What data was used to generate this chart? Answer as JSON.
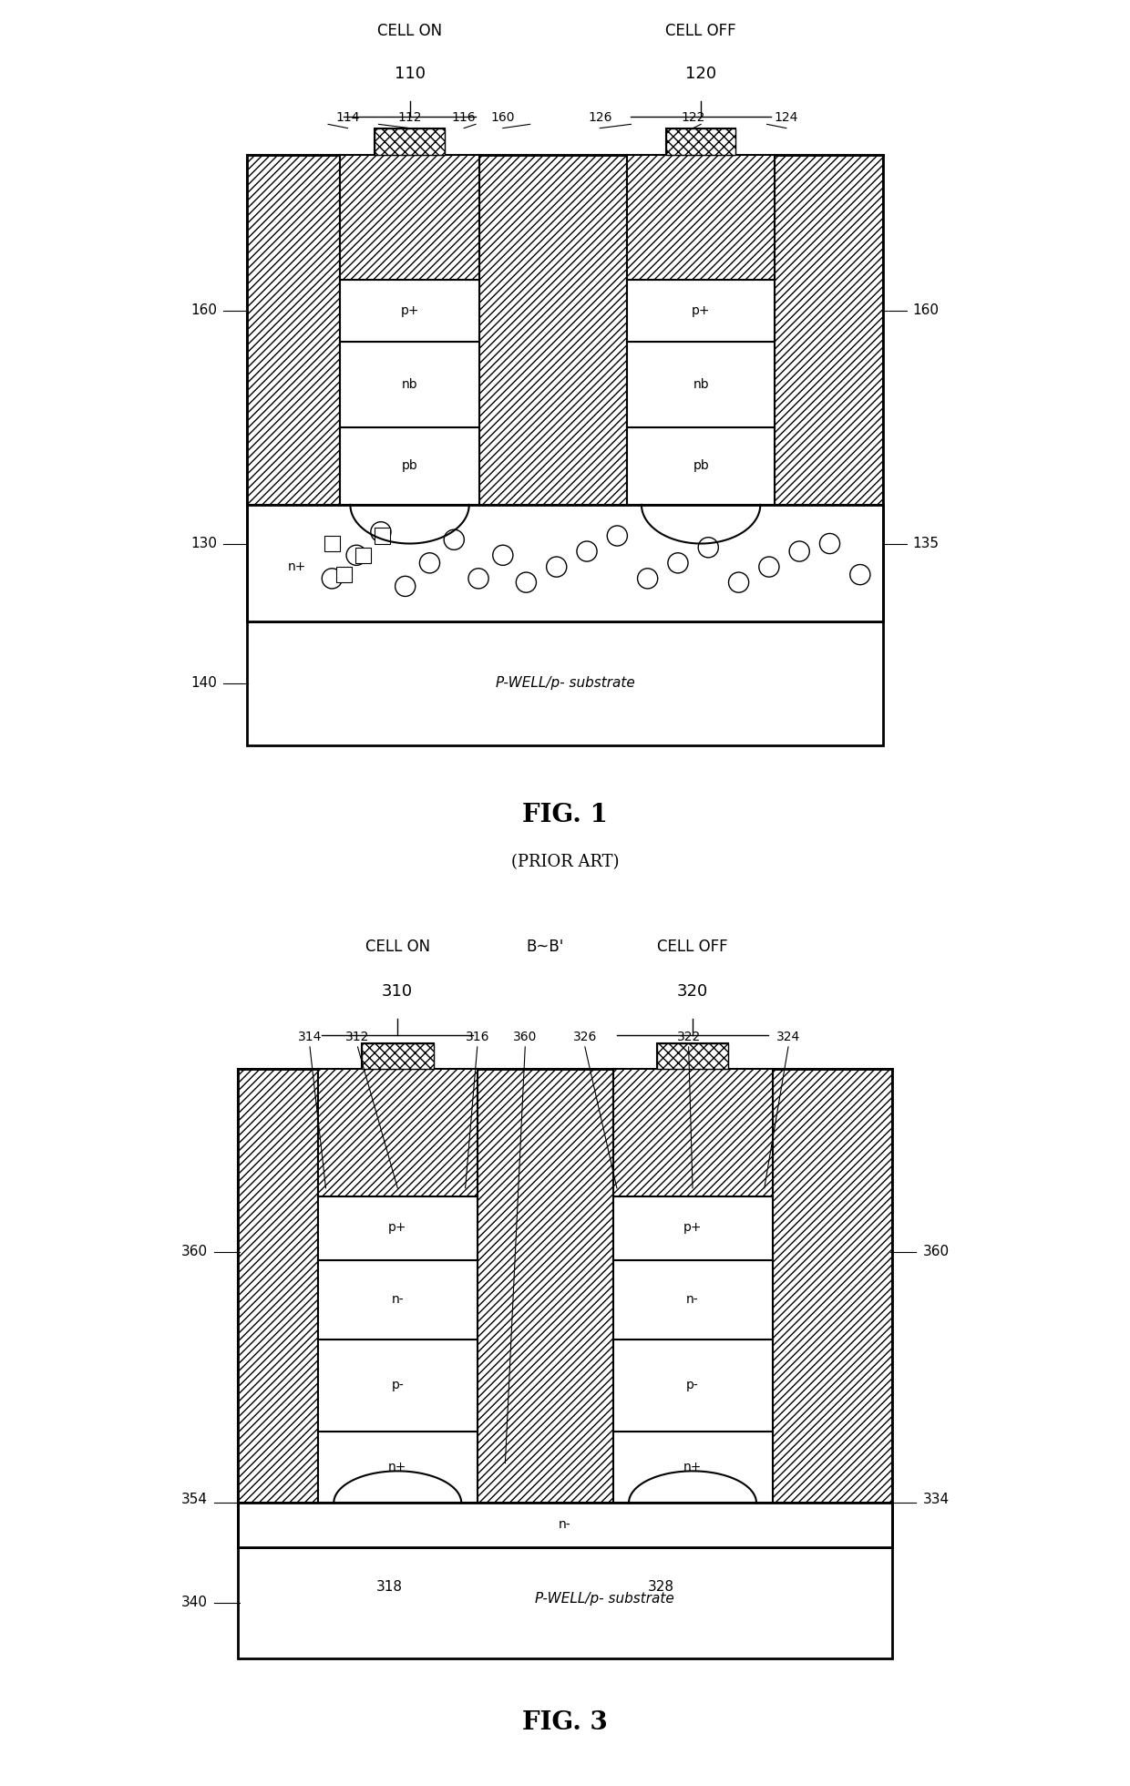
{
  "fig_width": 12.4,
  "fig_height": 19.6,
  "bg_color": "#ffffff",
  "fig1": {
    "title": "FIG. 1",
    "subtitle": "(PRIOR ART)",
    "label_cell_on": "CELL ON",
    "label_cell_on_num": "110",
    "label_cell_off": "CELL OFF",
    "label_cell_off_num": "120",
    "label_160_left": "160",
    "label_160_right": "160",
    "label_130": "130",
    "label_135": "135",
    "label_140": "140",
    "layer_labels_left": [
      "p+",
      "nb",
      "pb"
    ],
    "layer_labels_right": [
      "p+",
      "nb",
      "pb"
    ],
    "substrate_label": "P-WELL/p- substrate",
    "cathode_label": "n+",
    "ref_114": "114",
    "ref_112": "112",
    "ref_116": "116",
    "ref_160t": "160",
    "ref_126": "126",
    "ref_122": "122",
    "ref_124": "124"
  },
  "fig3": {
    "title": "FIG. 3",
    "label_cell_on": "CELL ON",
    "label_cell_on_num": "310",
    "label_bb": "B~B'",
    "label_cell_off": "CELL OFF",
    "label_cell_off_num": "320",
    "label_360_left": "360",
    "label_360_right": "360",
    "label_354": "354",
    "label_334": "334",
    "label_340": "340",
    "layer_labels_left": [
      "p+",
      "n-",
      "p-",
      "n+"
    ],
    "layer_labels_right": [
      "p+",
      "n-",
      "p-",
      "n+"
    ],
    "substrate_label": "P-WELL/p- substrate",
    "nminus_label": "n-",
    "label_318": "318",
    "label_328": "328",
    "ref_314": "314",
    "ref_312": "312",
    "ref_316": "316",
    "ref_360t": "360",
    "ref_326": "326",
    "ref_322": "322",
    "ref_324": "324"
  }
}
